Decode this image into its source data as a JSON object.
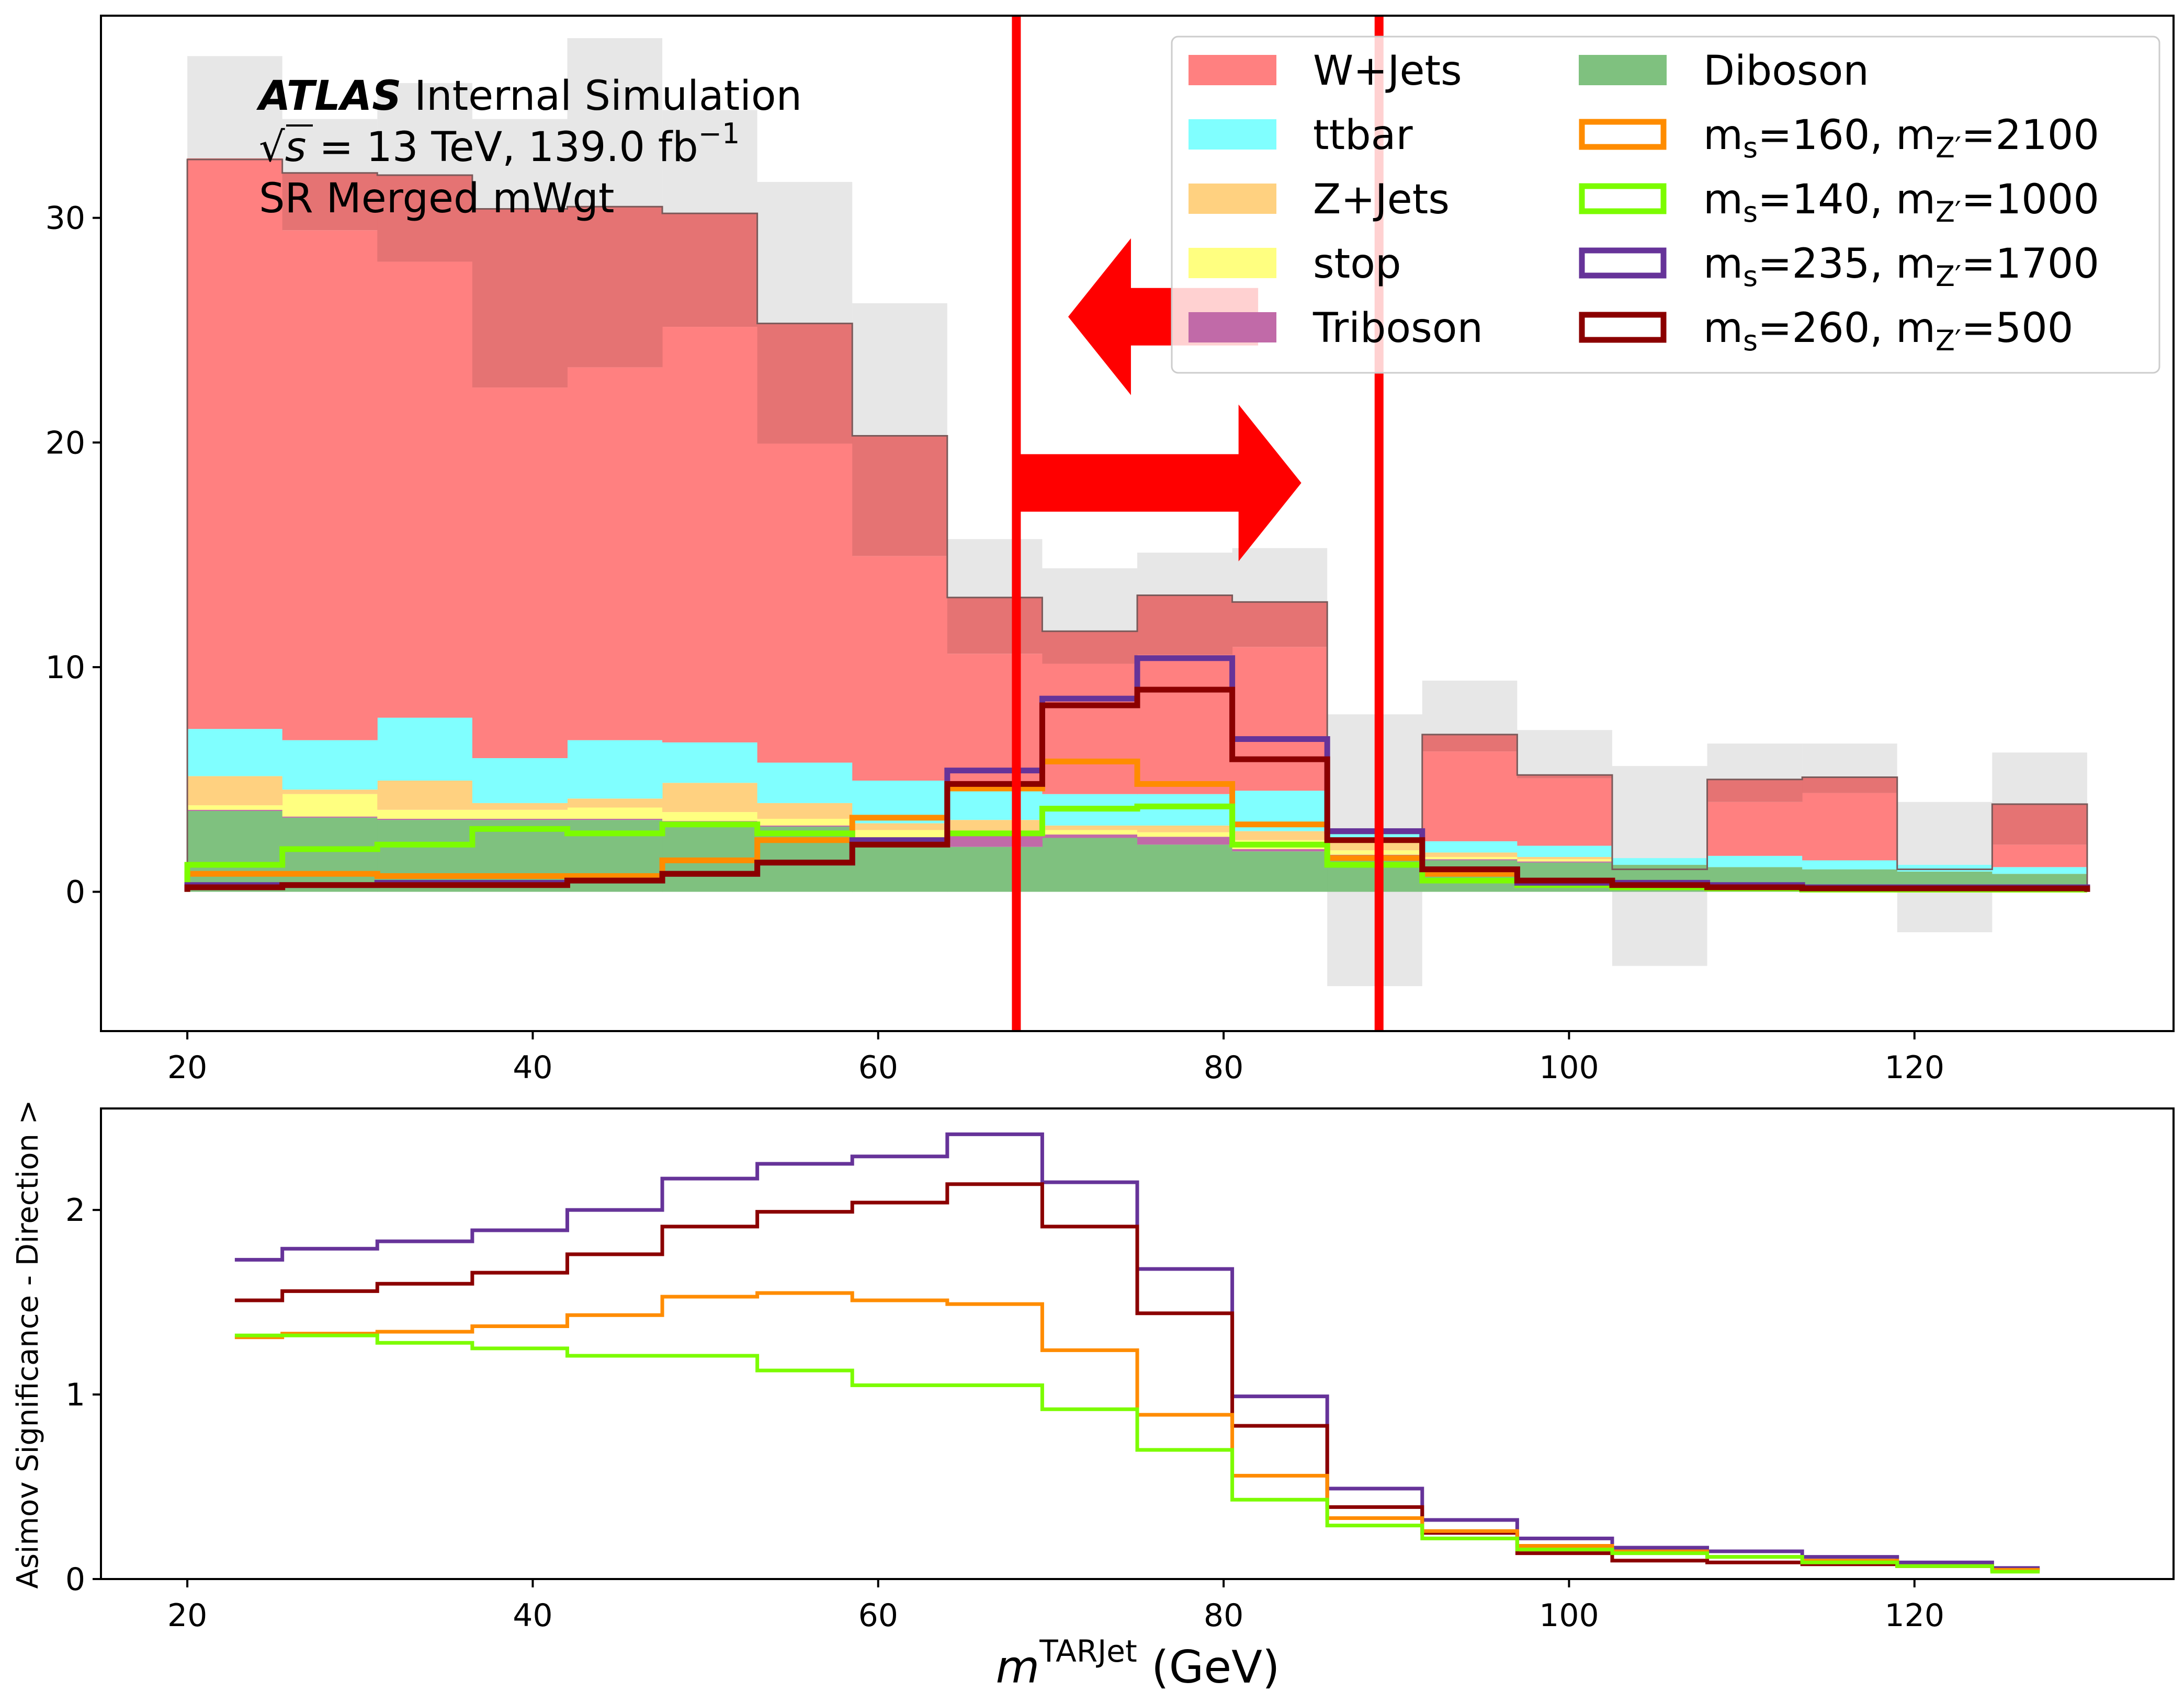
{
  "chart_data": [
    {
      "type": "histogram",
      "panel": "top",
      "bin_edges": [
        20,
        25.5,
        31,
        36.5,
        42,
        47.5,
        53,
        58.5,
        64,
        69.5,
        75,
        80.5,
        86,
        91.5,
        97,
        102.5,
        108,
        113.5,
        119,
        124.5,
        130
      ],
      "xlim": [
        15,
        135
      ],
      "ylim": [
        -6.2,
        39
      ],
      "yticks": [
        0,
        10,
        20,
        30
      ],
      "xticks": [
        20,
        40,
        60,
        80,
        100,
        120
      ],
      "stack": [
        {
          "name": "Diboson",
          "color": "#7fc17f",
          "values": [
            3.6,
            3.3,
            3.2,
            3.2,
            3.2,
            3.1,
            2.9,
            2.2,
            2.0,
            2.4,
            2.1,
            1.8,
            1.6,
            1.4,
            1.3,
            1.2,
            1.1,
            1.0,
            0.9,
            0.8
          ]
        },
        {
          "name": "Triboson",
          "color": "#c16aa8",
          "values": [
            0.05,
            0.05,
            0.05,
            0.05,
            0.05,
            0.05,
            0.05,
            0.05,
            0.5,
            0.15,
            0.35,
            0.1,
            0.05,
            0.05,
            0.05,
            0.0,
            0.0,
            0.0,
            0.0,
            0.0
          ]
        },
        {
          "name": "stop",
          "color": "#ffff80",
          "values": [
            0.2,
            1.0,
            0.4,
            0.4,
            0.5,
            0.4,
            0.3,
            0.5,
            0.2,
            0.2,
            0.2,
            0.4,
            0.2,
            0.1,
            0.1,
            0.0,
            0.0,
            0.0,
            0.0,
            0.0
          ]
        },
        {
          "name": "Z+Jets",
          "color": "#ffd180",
          "values": [
            1.3,
            0.2,
            1.3,
            0.3,
            0.4,
            1.3,
            0.7,
            0.3,
            0.5,
            0.2,
            0.3,
            0.4,
            0.5,
            0.2,
            0.1,
            0.0,
            0.0,
            0.0,
            0.0,
            0.0
          ]
        },
        {
          "name": "ttbar",
          "color": "#80ffff",
          "values": [
            2.1,
            2.2,
            2.8,
            2.0,
            2.6,
            1.8,
            1.8,
            1.9,
            1.6,
            1.4,
            1.4,
            1.8,
            0.3,
            0.5,
            0.5,
            0.3,
            0.5,
            0.4,
            0.3,
            0.3
          ]
        },
        {
          "name": "W+Jets",
          "color": "#ff8080",
          "values": [
            25.4,
            22.7,
            20.3,
            16.5,
            16.6,
            18.5,
            14.2,
            10.0,
            5.8,
            5.8,
            6.2,
            6.4,
            0.0,
            4.0,
            3.0,
            0.0,
            2.4,
            3.0,
            0.0,
            1.0
          ]
        }
      ],
      "total": [
        32.6,
        32.0,
        31.9,
        30.4,
        30.5,
        30.2,
        25.3,
        20.3,
        13.1,
        11.6,
        13.2,
        12.9,
        2.6,
        7.0,
        5.2,
        1.0,
        5.0,
        5.1,
        1.0,
        3.9
      ],
      "band_low": [
        28.2,
        29.5,
        28.0,
        22.4,
        22.7,
        25.2,
        19.0,
        14.5,
        10.6,
        10.8,
        11.3,
        11.0,
        -4.2,
        4.8,
        3.1,
        -3.3,
        3.4,
        3.6,
        -1.8,
        1.7
      ],
      "band_high": [
        37.2,
        34.4,
        36.0,
        34.4,
        38.0,
        34.8,
        31.6,
        26.2,
        15.7,
        14.4,
        15.1,
        15.3,
        7.9,
        9.4,
        7.2,
        5.6,
        6.6,
        6.6,
        4.0,
        6.2
      ],
      "signals": [
        {
          "name": "m_s=160, m_Z'=2100",
          "color": "#ff8c00",
          "values": [
            0.8,
            0.8,
            0.7,
            0.7,
            0.7,
            1.4,
            2.3,
            3.3,
            4.6,
            5.8,
            4.8,
            3.0,
            1.5,
            0.8,
            0.4,
            0.3,
            0.2,
            0.15,
            0.1,
            0.1
          ]
        },
        {
          "name": "m_s=140, m_Z'=1000",
          "color": "#7cfc00",
          "values": [
            1.2,
            1.9,
            2.1,
            2.8,
            2.6,
            3.0,
            2.6,
            2.2,
            2.6,
            3.7,
            3.8,
            2.1,
            1.2,
            0.5,
            0.3,
            0.2,
            0.15,
            0.1,
            0.1,
            0.1
          ]
        },
        {
          "name": "m_s=235, m_Z'=1700",
          "color": "#663399",
          "values": [
            0.3,
            0.3,
            0.4,
            0.4,
            0.5,
            0.8,
            1.3,
            2.3,
            5.4,
            8.6,
            10.4,
            6.8,
            2.7,
            1.0,
            0.4,
            0.4,
            0.3,
            0.2,
            0.2,
            0.2
          ]
        },
        {
          "name": "m_s=260, m_Z'=500",
          "color": "#8b0000",
          "values": [
            0.2,
            0.3,
            0.3,
            0.3,
            0.5,
            0.8,
            1.3,
            2.1,
            4.8,
            8.3,
            9.0,
            5.9,
            2.3,
            1.0,
            0.5,
            0.3,
            0.2,
            0.15,
            0.15,
            0.15
          ]
        }
      ],
      "cut_lines": [
        68,
        89
      ],
      "cut_line_color": "#ff0000",
      "arrows": [
        {
          "direction": "right",
          "x_from": 68,
          "x_to": 84.5,
          "y": 18.2
        },
        {
          "direction": "left",
          "x_from": 82,
          "x_to": 71,
          "y": 25.6
        }
      ]
    },
    {
      "type": "line",
      "panel": "bottom",
      "ylabel": "Asimov Significance - Direction >",
      "xlabel_main": "m",
      "xlabel_sup": "TARJet",
      "xlabel_unit": " (GeV)",
      "xlim": [
        15,
        135
      ],
      "ylim": [
        0,
        2.55
      ],
      "yticks": [
        0,
        1,
        2
      ],
      "xticks": [
        20,
        40,
        60,
        80,
        100,
        120
      ],
      "step_edges": [
        22.75,
        25.5,
        31,
        36.5,
        42,
        47.5,
        53,
        58.5,
        64,
        69.5,
        75,
        80.5,
        86,
        91.5,
        97,
        102.5,
        108,
        113.5,
        119,
        124.5,
        127.25
      ],
      "series": [
        {
          "name": "m_s=235, m_Z'=1700",
          "color": "#663399",
          "values": [
            1.73,
            1.79,
            1.83,
            1.89,
            2.0,
            2.17,
            2.25,
            2.29,
            2.41,
            2.15,
            1.68,
            0.99,
            0.49,
            0.32,
            0.22,
            0.17,
            0.15,
            0.12,
            0.09,
            0.06
          ]
        },
        {
          "name": "m_s=260, m_Z'=500",
          "color": "#8b0000",
          "values": [
            1.51,
            1.56,
            1.6,
            1.66,
            1.76,
            1.91,
            1.99,
            2.04,
            2.14,
            1.91,
            1.44,
            0.83,
            0.39,
            0.25,
            0.14,
            0.1,
            0.09,
            0.08,
            0.07,
            0.05
          ]
        },
        {
          "name": "m_s=160, m_Z'=2100",
          "color": "#ff8c00",
          "values": [
            1.31,
            1.33,
            1.34,
            1.37,
            1.43,
            1.53,
            1.55,
            1.51,
            1.49,
            1.24,
            0.89,
            0.56,
            0.33,
            0.26,
            0.18,
            0.15,
            0.12,
            0.1,
            0.07,
            0.05
          ]
        },
        {
          "name": "m_s=140, m_Z'=1000",
          "color": "#7cfc00",
          "values": [
            1.32,
            1.32,
            1.28,
            1.25,
            1.21,
            1.21,
            1.13,
            1.05,
            1.05,
            0.92,
            0.7,
            0.43,
            0.29,
            0.22,
            0.16,
            0.14,
            0.12,
            0.09,
            0.07,
            0.04
          ]
        }
      ]
    }
  ],
  "annotation": {
    "atlas_bold": "ATLAS",
    "atlas_rest": " Internal Simulation",
    "sqrt_symbol": "√",
    "s_symbol": "s",
    "energy": " = 13 TeV, 139.0 fb",
    "lumi_exp": "−1",
    "region": "SR Merged mWgt"
  },
  "legend": {
    "placement": "upper-right",
    "left_column": [
      {
        "label": "W+Jets",
        "color": "#ff8080"
      },
      {
        "label": "ttbar",
        "color": "#80ffff"
      },
      {
        "label": "Z+Jets",
        "color": "#ffd180"
      },
      {
        "label": "stop",
        "color": "#ffff80"
      },
      {
        "label": "Triboson",
        "color": "#c16aa8"
      }
    ],
    "right_column": [
      {
        "label": "Diboson",
        "color": "#7fc17f",
        "style": "fill"
      },
      {
        "m": "m",
        "sub1": "s",
        "mid": "=160, m",
        "sub2": "Z′",
        "tail": "=2100",
        "color": "#ff8c00",
        "style": "outline"
      },
      {
        "m": "m",
        "sub1": "s",
        "mid": "=140, m",
        "sub2": "Z′",
        "tail": "=1000",
        "color": "#7cfc00",
        "style": "outline"
      },
      {
        "m": "m",
        "sub1": "s",
        "mid": "=235, m",
        "sub2": "Z′",
        "tail": "=1700",
        "color": "#663399",
        "style": "outline"
      },
      {
        "m": "m",
        "sub1": "s",
        "mid": "=260, m",
        "sub2": "Z′",
        "tail": "=500",
        "color": "#8b0000",
        "style": "outline"
      }
    ]
  }
}
